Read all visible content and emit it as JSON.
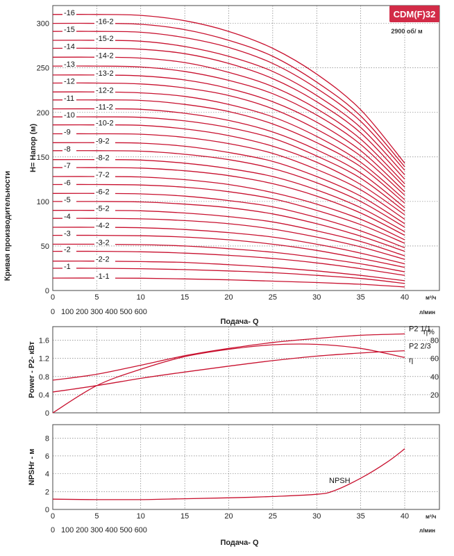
{
  "badge": {
    "text": "CDM(F)32",
    "color": "#d22b47"
  },
  "speed": "2900 об/ м",
  "side_title": "Кривая производительности",
  "flow_label": "Подача- Q",
  "unit_m3h": "м³/ч",
  "unit_lmin": "л/мин",
  "q_ticks": [
    "0",
    "5",
    "10",
    "15",
    "20",
    "25",
    "30",
    "35",
    "40"
  ],
  "lmin_ticks": [
    "0",
    "100",
    "200",
    "300",
    "400",
    "500",
    "600"
  ],
  "chart_data": [
    {
      "type": "line",
      "ylabel": "H= Напор (м)",
      "x_m3h": [
        0,
        5,
        10,
        15,
        20,
        25,
        30,
        35,
        40
      ],
      "ylim": [
        0,
        320
      ],
      "y_ticks": [
        "0",
        "50",
        "100",
        "150",
        "200",
        "250",
        "300"
      ],
      "curve_color": "#c8102e",
      "series": [
        {
          "name": "-1-1",
          "values": [
            14,
            14,
            13.8,
            13,
            12,
            10.5,
            9,
            7,
            4
          ]
        },
        {
          "name": "-1",
          "values": [
            25,
            25,
            24.5,
            23.5,
            22,
            20,
            17,
            13.5,
            8
          ]
        },
        {
          "name": "-2-2",
          "values": [
            33,
            33,
            32.5,
            31.5,
            29,
            26,
            22,
            17,
            11
          ]
        },
        {
          "name": "-2",
          "values": [
            44,
            44,
            43.5,
            42,
            39.5,
            36,
            31,
            24.5,
            17
          ]
        },
        {
          "name": "-3-2",
          "values": [
            52,
            52,
            51.5,
            50,
            47,
            43,
            37,
            30,
            21
          ]
        },
        {
          "name": "-3",
          "values": [
            62,
            62,
            61.5,
            60,
            57,
            52,
            45,
            36,
            26
          ]
        },
        {
          "name": "-4-2",
          "values": [
            71,
            71,
            70.5,
            68.5,
            65,
            60,
            52,
            42,
            30
          ]
        },
        {
          "name": "-4",
          "values": [
            81,
            81,
            80.5,
            78.5,
            75,
            69,
            60,
            49,
            35
          ]
        },
        {
          "name": "-5-2",
          "values": [
            90,
            90,
            89.5,
            87,
            83,
            77,
            67,
            55,
            39
          ]
        },
        {
          "name": "-5",
          "values": [
            100,
            100,
            99.5,
            97,
            93,
            86,
            75,
            61,
            44
          ]
        },
        {
          "name": "-6-2",
          "values": [
            109,
            109,
            108.5,
            106,
            101,
            94,
            82,
            67,
            48
          ]
        },
        {
          "name": "-6",
          "values": [
            119,
            119,
            118.5,
            116,
            111,
            103,
            90,
            74,
            53
          ]
        },
        {
          "name": "-7-2",
          "values": [
            128,
            128,
            127.5,
            124.5,
            119,
            110,
            97,
            80,
            57
          ]
        },
        {
          "name": "-7",
          "values": [
            138,
            138,
            137.5,
            134.5,
            129,
            120,
            106,
            87,
            62
          ]
        },
        {
          "name": "-8-2",
          "values": [
            147,
            147,
            146.5,
            143,
            137,
            128,
            113,
            93,
            66
          ]
        },
        {
          "name": "-8",
          "values": [
            157,
            157,
            156.5,
            153,
            147,
            137,
            121,
            100,
            71
          ]
        },
        {
          "name": "-9-2",
          "values": [
            166,
            166,
            165.5,
            162,
            155,
            145,
            128,
            106,
            75
          ]
        },
        {
          "name": "-9",
          "values": [
            176,
            176,
            175.5,
            172,
            165,
            154,
            136,
            113,
            80
          ]
        },
        {
          "name": "-10-2",
          "values": [
            186,
            186,
            185.5,
            181.5,
            174,
            162,
            144,
            119,
            85
          ]
        },
        {
          "name": "-10",
          "values": [
            195,
            195,
            194.5,
            190.5,
            183,
            171,
            151,
            126,
            89
          ]
        },
        {
          "name": "-11-2",
          "values": [
            204,
            204,
            203.5,
            199,
            191,
            178,
            158,
            132,
            93
          ]
        },
        {
          "name": "-11",
          "values": [
            214,
            214,
            213.5,
            209,
            201,
            187,
            166,
            139,
            98
          ]
        },
        {
          "name": "-12-2",
          "values": [
            223,
            223,
            222,
            218,
            209,
            195,
            173,
            144,
            102
          ]
        },
        {
          "name": "-12",
          "values": [
            233,
            233,
            232,
            227.5,
            219,
            204,
            181,
            151,
            107
          ]
        },
        {
          "name": "-13-2",
          "values": [
            242,
            242,
            241,
            236.5,
            227,
            212,
            189,
            157,
            111
          ]
        },
        {
          "name": "-13",
          "values": [
            252,
            252,
            251,
            246,
            236,
            221,
            197,
            164,
            116
          ]
        },
        {
          "name": "-14-2",
          "values": [
            262,
            262,
            261,
            256,
            245,
            229,
            204,
            170,
            120
          ]
        },
        {
          "name": "-14",
          "values": [
            272,
            272,
            271,
            266,
            255,
            238,
            212,
            177,
            125
          ]
        },
        {
          "name": "-15-2",
          "values": [
            281,
            281,
            280,
            274,
            263,
            246,
            219,
            183,
            130
          ]
        },
        {
          "name": "-15",
          "values": [
            291,
            291,
            290,
            284,
            273,
            255,
            227,
            190,
            135
          ]
        },
        {
          "name": "-16-2",
          "values": [
            300,
            300,
            299,
            293,
            281,
            263,
            234,
            196,
            139
          ]
        },
        {
          "name": "-16",
          "values": [
            310,
            310,
            309,
            303,
            291,
            272,
            243,
            203,
            143
          ]
        }
      ]
    },
    {
      "type": "line",
      "ylabel": "Power - P2- кВт",
      "x_m3h": [
        0,
        5,
        10,
        15,
        20,
        25,
        30,
        35,
        40
      ],
      "ylim": [
        0,
        1.9
      ],
      "y_ticks": [
        "0",
        "0.4",
        "0.8",
        "1.2",
        "1.6"
      ],
      "eta_axis": {
        "label": "η%",
        "ticks": [
          "20",
          "40",
          "60",
          "80"
        ],
        "range": [
          0,
          95
        ]
      },
      "series": [
        {
          "name": "P2 1/1",
          "axis": "left",
          "values": [
            0.72,
            0.85,
            1.05,
            1.26,
            1.42,
            1.55,
            1.64,
            1.71,
            1.74
          ]
        },
        {
          "name": "P2 2/3",
          "axis": "left",
          "values": [
            0.46,
            0.6,
            0.76,
            0.9,
            1.03,
            1.15,
            1.25,
            1.32,
            1.37
          ]
        },
        {
          "name": "η",
          "axis": "right",
          "values": [
            0,
            30,
            48,
            62,
            70,
            75,
            75.5,
            71,
            61
          ]
        }
      ]
    },
    {
      "type": "line",
      "ylabel": "NPSHr - м",
      "x_m3h": [
        0,
        5,
        10,
        15,
        20,
        25,
        30,
        32,
        35,
        38,
        40
      ],
      "ylim": [
        0,
        9.5
      ],
      "y_ticks": [
        "0",
        "2",
        "4",
        "6",
        "8"
      ],
      "series": [
        {
          "name": "NPSH",
          "values": [
            1.15,
            1.1,
            1.1,
            1.2,
            1.3,
            1.45,
            1.7,
            2.1,
            3.5,
            5.3,
            6.8
          ]
        }
      ]
    }
  ]
}
